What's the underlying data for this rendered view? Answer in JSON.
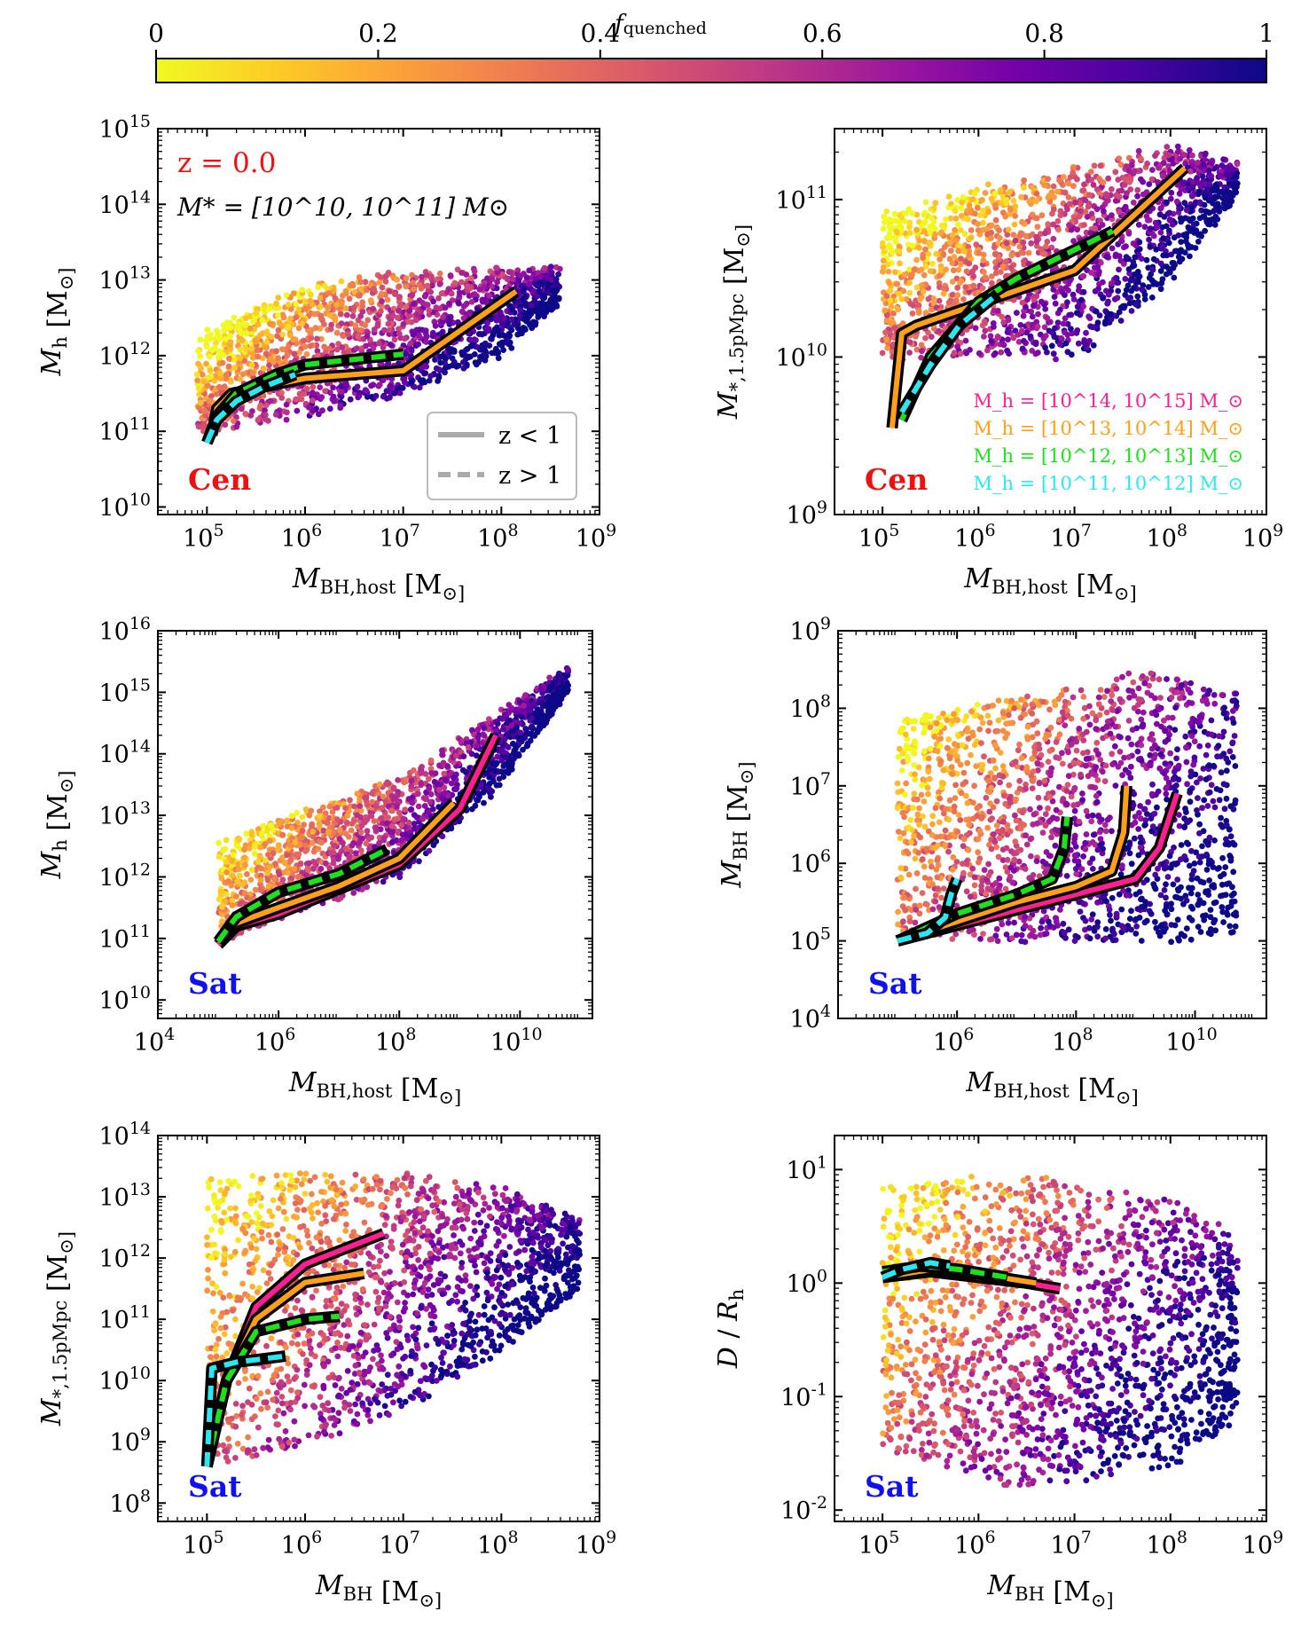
{
  "colorbar": {
    "label_base": "f",
    "label_sub": "quenched",
    "ticks": [
      "0",
      "0.2",
      "0.4",
      "0.6",
      "0.8",
      "1"
    ],
    "colormap": [
      "#f0f921",
      "#fdca26",
      "#fb9f3a",
      "#ed7953",
      "#d8576b",
      "#bd3786",
      "#9c179e",
      "#7201a8",
      "#46039f",
      "#0d0887"
    ]
  },
  "legend_linestyle": {
    "solid": "z < 1",
    "dashed": "z > 1"
  },
  "legend_mass_bins": [
    {
      "label": "M_h = [10^14, 10^15] M_⊙",
      "color": "#ff1f8e"
    },
    {
      "label": "M_h = [10^13, 10^14] M_⊙",
      "color": "#ff9f1a"
    },
    {
      "label": "M_h = [10^12, 10^13] M_⊙",
      "color": "#1fe01f"
    },
    {
      "label": "M_h = [10^11, 10^12] M_⊙",
      "color": "#2be8f0"
    }
  ],
  "annotations": {
    "redshift": "z = 0.0",
    "stellar_mass_range": "M* = [10^10, 10^11] M⊙",
    "central": "Cen",
    "satellite": "Sat"
  },
  "chart_data": [
    {
      "type": "scatter",
      "panel": "a",
      "xlabel": "M_BH,host [M_⊙]",
      "ylabel": "M_h [M_⊙]",
      "xscale": "log",
      "yscale": "log",
      "xlim_log": [
        4.5,
        9
      ],
      "ylim_log": [
        9.9,
        15
      ],
      "xticks_log": [
        5,
        6,
        7,
        8,
        9
      ],
      "yticks_log": [
        10,
        11,
        12,
        13,
        14,
        15
      ],
      "tag": "Cen",
      "lines": [
        {
          "series": "z<1",
          "bin": "10^13-10^14",
          "points": [
            [
              5.05,
              10.95
            ],
            [
              5.1,
              11.3
            ],
            [
              5.25,
              11.5
            ],
            [
              6.0,
              11.7
            ],
            [
              7.0,
              11.8
            ],
            [
              8.15,
              12.85
            ]
          ]
        },
        {
          "series": "z>1",
          "bin": "10^12-10^13",
          "points": [
            [
              5.0,
              10.85
            ],
            [
              5.1,
              11.2
            ],
            [
              5.3,
              11.5
            ],
            [
              5.7,
              11.75
            ],
            [
              6.0,
              11.88
            ],
            [
              7.0,
              12.02
            ]
          ]
        },
        {
          "series": "z>1",
          "bin": "10^11-10^12",
          "points": [
            [
              5.0,
              10.85
            ],
            [
              5.1,
              11.15
            ],
            [
              5.3,
              11.4
            ],
            [
              5.6,
              11.6
            ],
            [
              5.9,
              11.75
            ]
          ]
        }
      ],
      "density_band": {
        "lower": [
          [
            4.9,
            11.0
          ],
          [
            6.0,
            11.2
          ],
          [
            7.0,
            11.5
          ],
          [
            8.0,
            12.0
          ],
          [
            8.6,
            12.7
          ]
        ],
        "upper": [
          [
            4.9,
            12.3
          ],
          [
            6.0,
            12.9
          ],
          [
            7.0,
            13.1
          ],
          [
            8.0,
            13.15
          ],
          [
            8.6,
            13.15
          ]
        ]
      }
    },
    {
      "type": "scatter",
      "panel": "b",
      "xlabel": "M_BH,host [M_⊙]",
      "ylabel": "M_*,1.5pMpc [M_⊙]",
      "xscale": "log",
      "yscale": "log",
      "xlim_log": [
        4.5,
        9
      ],
      "ylim_log": [
        9,
        11.45
      ],
      "xticks_log": [
        5,
        6,
        7,
        8,
        9
      ],
      "yticks_log": [
        9,
        10,
        11
      ],
      "tag": "Cen",
      "lines": [
        {
          "series": "z<1",
          "bin": "10^13-10^14",
          "points": [
            [
              5.1,
              9.55
            ],
            [
              5.2,
              10.15
            ],
            [
              5.35,
              10.2
            ],
            [
              7.0,
              10.55
            ],
            [
              8.15,
              11.2
            ]
          ]
        },
        {
          "series": "z>1",
          "bin": "10^12-10^13",
          "points": [
            [
              5.2,
              9.6
            ],
            [
              5.5,
              10.0
            ],
            [
              6.0,
              10.35
            ],
            [
              6.4,
              10.5
            ],
            [
              7.4,
              10.8
            ]
          ]
        },
        {
          "series": "z>1",
          "bin": "10^11-10^12",
          "points": [
            [
              5.2,
              9.65
            ],
            [
              5.5,
              9.95
            ],
            [
              5.8,
              10.2
            ],
            [
              6.2,
              10.4
            ]
          ]
        }
      ],
      "density_band": {
        "lower": [
          [
            5.0,
            10.0
          ],
          [
            6.0,
            10.0
          ],
          [
            7.0,
            10.0
          ],
          [
            8.0,
            10.5
          ],
          [
            8.7,
            11.05
          ]
        ],
        "upper": [
          [
            5.0,
            10.9
          ],
          [
            6.0,
            11.05
          ],
          [
            7.0,
            11.2
          ],
          [
            8.0,
            11.35
          ],
          [
            8.7,
            11.2
          ]
        ]
      }
    },
    {
      "type": "scatter",
      "panel": "c",
      "xlabel": "M_BH,host [M_⊙]",
      "ylabel": "M_h [M_⊙]",
      "xscale": "log",
      "yscale": "log",
      "xlim_log": [
        4,
        11.2
      ],
      "ylim_log": [
        9.7,
        16
      ],
      "xticks_log": [
        4,
        6,
        8,
        10
      ],
      "yticks_log": [
        10,
        11,
        12,
        13,
        14,
        15,
        16
      ],
      "tag": "Sat",
      "lines": [
        {
          "series": "z<1",
          "bin": "10^14-10^15",
          "points": [
            [
              5.0,
              10.9
            ],
            [
              5.3,
              11.2
            ],
            [
              6.0,
              11.4
            ],
            [
              7.0,
              11.8
            ],
            [
              8.0,
              12.2
            ],
            [
              9.0,
              13.1
            ],
            [
              9.6,
              14.3
            ]
          ]
        },
        {
          "series": "z<1",
          "bin": "10^13-10^14",
          "points": [
            [
              5.0,
              10.95
            ],
            [
              5.3,
              11.25
            ],
            [
              6.0,
              11.5
            ],
            [
              7.0,
              11.85
            ],
            [
              8.0,
              12.3
            ],
            [
              8.9,
              13.2
            ]
          ]
        },
        {
          "series": "z>1",
          "bin": "10^12-10^13",
          "points": [
            [
              5.0,
              10.95
            ],
            [
              5.3,
              11.35
            ],
            [
              6.0,
              11.75
            ],
            [
              7.0,
              12.05
            ],
            [
              7.8,
              12.45
            ]
          ]
        }
      ],
      "density_band": {
        "lower": [
          [
            5.0,
            10.9
          ],
          [
            6.5,
            11.5
          ],
          [
            8.0,
            12.0
          ],
          [
            9.5,
            13.3
          ],
          [
            10.8,
            15.0
          ]
        ],
        "upper": [
          [
            5.0,
            12.6
          ],
          [
            6.5,
            13.1
          ],
          [
            8.0,
            13.6
          ],
          [
            9.5,
            14.6
          ],
          [
            10.8,
            15.4
          ]
        ]
      }
    },
    {
      "type": "scatter",
      "panel": "d",
      "xlabel": "M_BH,host [M_⊙]",
      "ylabel": "M_BH [M_⊙]",
      "xscale": "log",
      "yscale": "log",
      "xlim_log": [
        4,
        11.2
      ],
      "ylim_log": [
        4,
        9
      ],
      "xticks_log": [
        6,
        8,
        10
      ],
      "yticks_log": [
        4,
        5,
        6,
        7,
        8,
        9
      ],
      "tag": "Sat",
      "lines": [
        {
          "series": "z<1",
          "bin": "10^14-10^15",
          "points": [
            [
              5.0,
              5.0
            ],
            [
              6.0,
              5.2
            ],
            [
              7.0,
              5.4
            ],
            [
              8.0,
              5.6
            ],
            [
              9.0,
              5.8
            ],
            [
              9.4,
              6.2
            ],
            [
              9.7,
              6.9
            ]
          ]
        },
        {
          "series": "z<1",
          "bin": "10^13-10^14",
          "points": [
            [
              5.0,
              5.0
            ],
            [
              6.0,
              5.25
            ],
            [
              7.0,
              5.5
            ],
            [
              8.0,
              5.7
            ],
            [
              8.6,
              5.9
            ],
            [
              8.8,
              6.4
            ],
            [
              8.85,
              7.0
            ]
          ]
        },
        {
          "series": "z>1",
          "bin": "10^12-10^13",
          "points": [
            [
              5.0,
              5.0
            ],
            [
              6.0,
              5.35
            ],
            [
              7.0,
              5.6
            ],
            [
              7.6,
              5.8
            ],
            [
              7.8,
              6.2
            ],
            [
              7.85,
              6.6
            ]
          ]
        },
        {
          "series": "z>1",
          "bin": "10^11-10^12",
          "points": [
            [
              5.0,
              5.0
            ],
            [
              5.5,
              5.1
            ],
            [
              5.8,
              5.3
            ],
            [
              5.9,
              5.6
            ],
            [
              6.0,
              5.8
            ]
          ]
        }
      ],
      "density_band": {
        "lower": [
          [
            5.0,
            5.0
          ],
          [
            7.0,
            5.0
          ],
          [
            9.0,
            5.0
          ],
          [
            10.7,
            5.0
          ]
        ],
        "upper": [
          [
            5.0,
            7.9
          ],
          [
            7.0,
            8.1
          ],
          [
            9.0,
            8.5
          ],
          [
            10.7,
            8.2
          ]
        ]
      }
    },
    {
      "type": "scatter",
      "panel": "e",
      "xlabel": "M_BH [M_⊙]",
      "ylabel": "M_*,1.5pMpc [M_⊙]",
      "xscale": "log",
      "yscale": "log",
      "xlim_log": [
        4.5,
        9
      ],
      "ylim_log": [
        7.7,
        14
      ],
      "xticks_log": [
        5,
        6,
        7,
        8,
        9
      ],
      "yticks_log": [
        8,
        9,
        10,
        11,
        12,
        13,
        14
      ],
      "tag": "Sat",
      "lines": [
        {
          "series": "z<1",
          "bin": "10^14-10^15",
          "points": [
            [
              5.0,
              8.6
            ],
            [
              5.2,
              10.0
            ],
            [
              5.5,
              11.2
            ],
            [
              6.0,
              11.9
            ],
            [
              6.8,
              12.4
            ]
          ]
        },
        {
          "series": "z<1",
          "bin": "10^13-10^14",
          "points": [
            [
              5.0,
              8.6
            ],
            [
              5.2,
              10.0
            ],
            [
              5.5,
              11.0
            ],
            [
              6.0,
              11.6
            ],
            [
              6.6,
              11.75
            ]
          ]
        },
        {
          "series": "z>1",
          "bin": "10^12-10^13",
          "points": [
            [
              5.0,
              8.6
            ],
            [
              5.2,
              10.0
            ],
            [
              5.5,
              10.8
            ],
            [
              6.0,
              11.0
            ],
            [
              6.35,
              11.05
            ]
          ]
        },
        {
          "series": "z>1",
          "bin": "10^11-10^12",
          "points": [
            [
              5.0,
              8.6
            ],
            [
              5.05,
              10.2
            ],
            [
              5.3,
              10.3
            ],
            [
              5.8,
              10.4
            ]
          ]
        }
      ],
      "density_band": {
        "lower": [
          [
            5.0,
            8.6
          ],
          [
            6.0,
            8.9
          ],
          [
            7.0,
            9.5
          ],
          [
            8.0,
            10.5
          ],
          [
            8.8,
            11.5
          ]
        ],
        "upper": [
          [
            5.0,
            13.3
          ],
          [
            6.0,
            13.4
          ],
          [
            7.0,
            13.4
          ],
          [
            8.0,
            13.2
          ],
          [
            8.8,
            12.6
          ]
        ]
      }
    },
    {
      "type": "scatter",
      "panel": "f",
      "xlabel": "M_BH [M_⊙]",
      "ylabel": "D / R_h",
      "xscale": "log",
      "yscale": "log",
      "xlim_log": [
        4.5,
        9
      ],
      "ylim_log": [
        -2.1,
        1.3
      ],
      "xticks_log": [
        5,
        6,
        7,
        8,
        9
      ],
      "yticks_log": [
        -2,
        -1,
        0,
        1
      ],
      "tag": "Sat",
      "lines": [
        {
          "series": "z<1",
          "bin": "10^14-10^15",
          "points": [
            [
              5.0,
              0.05
            ],
            [
              5.5,
              0.1
            ],
            [
              6.0,
              0.05
            ],
            [
              6.5,
              0.0
            ],
            [
              6.85,
              -0.05
            ]
          ]
        },
        {
          "series": "z<1",
          "bin": "10^13-10^14",
          "points": [
            [
              5.0,
              0.05
            ],
            [
              5.5,
              0.12
            ],
            [
              6.0,
              0.08
            ],
            [
              6.6,
              0.0
            ]
          ]
        },
        {
          "series": "z>1",
          "bin": "10^12-10^13",
          "points": [
            [
              5.0,
              0.1
            ],
            [
              5.4,
              0.15
            ],
            [
              5.8,
              0.12
            ],
            [
              6.3,
              0.05
            ]
          ]
        },
        {
          "series": "z>1",
          "bin": "10^11-10^12",
          "points": [
            [
              5.0,
              0.05
            ],
            [
              5.2,
              0.12
            ],
            [
              5.5,
              0.18
            ],
            [
              5.7,
              0.15
            ]
          ]
        }
      ],
      "density_band": {
        "lower": [
          [
            5.0,
            -1.5
          ],
          [
            6.5,
            -1.8
          ],
          [
            8.0,
            -1.6
          ],
          [
            8.7,
            -1.2
          ]
        ],
        "upper": [
          [
            5.0,
            0.9
          ],
          [
            6.5,
            0.95
          ],
          [
            8.0,
            0.75
          ],
          [
            8.7,
            0.4
          ]
        ]
      }
    }
  ]
}
